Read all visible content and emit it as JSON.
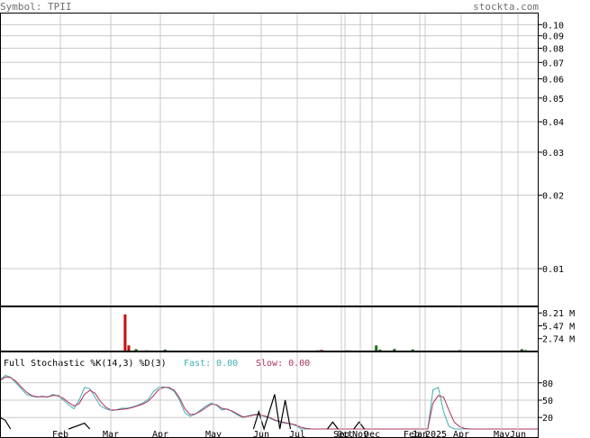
{
  "header": {
    "symbol_text": "Symbol: TPII",
    "site": "stockta.com"
  },
  "colors": {
    "grid": "#c8c8c8",
    "frame": "#000000",
    "volume_up": "#207020",
    "volume_down": "#c81010",
    "fast_line": "#40b0b0",
    "slow_line": "#b03060",
    "k_black": "#000000",
    "header_text": "#707070"
  },
  "chart_data": [
    {
      "type": "line",
      "panel": "price",
      "scale": "log",
      "ylim": [
        0.007,
        0.112
      ],
      "y_ticks": [
        "0.10",
        "0.09",
        "0.08",
        "0.07",
        "0.06",
        "0.05",
        "0.04",
        "0.03",
        "0.02",
        "0.01"
      ],
      "y_tick_values": [
        0.1,
        0.09,
        0.08,
        0.07,
        0.06,
        0.05,
        0.04,
        0.03,
        0.02,
        0.01
      ],
      "grid": true,
      "series": []
    },
    {
      "type": "bar",
      "panel": "volume",
      "ylim": [
        0,
        9.6
      ],
      "y_ticks": [
        "8.21 M",
        "5.47 M",
        "2.74 M"
      ],
      "y_tick_values": [
        8.21,
        5.47,
        2.74
      ],
      "bars": [
        {
          "i": 9,
          "v": 0.15,
          "c": "up"
        },
        {
          "i": 19,
          "v": 0.12,
          "c": "up"
        },
        {
          "i": 24,
          "v": 0.18,
          "c": "up"
        },
        {
          "i": 29,
          "v": 0.1,
          "c": "up"
        },
        {
          "i": 34,
          "v": 7.9,
          "c": "down"
        },
        {
          "i": 35,
          "v": 1.3,
          "c": "down"
        },
        {
          "i": 37,
          "v": 0.5,
          "c": "up"
        },
        {
          "i": 40,
          "v": 0.25,
          "c": "down"
        },
        {
          "i": 45,
          "v": 0.4,
          "c": "up"
        },
        {
          "i": 50,
          "v": 0.12,
          "c": "up"
        },
        {
          "i": 66,
          "v": 0.15,
          "c": "down"
        },
        {
          "i": 87,
          "v": 0.25,
          "c": "up"
        },
        {
          "i": 88,
          "v": 0.35,
          "c": "down"
        },
        {
          "i": 95,
          "v": 0.25,
          "c": "up"
        },
        {
          "i": 96,
          "v": 0.2,
          "c": "up"
        },
        {
          "i": 103,
          "v": 1.3,
          "c": "up"
        },
        {
          "i": 104,
          "v": 0.4,
          "c": "up"
        },
        {
          "i": 108,
          "v": 0.55,
          "c": "up"
        },
        {
          "i": 113,
          "v": 0.45,
          "c": "up"
        },
        {
          "i": 124,
          "v": 0.2,
          "c": "up"
        },
        {
          "i": 126,
          "v": 0.3,
          "c": "up"
        },
        {
          "i": 143,
          "v": 0.5,
          "c": "up"
        },
        {
          "i": 144,
          "v": 0.3,
          "c": "up"
        }
      ]
    },
    {
      "type": "line",
      "panel": "stochastic",
      "title": "Full Stochastic %K(14,3) %D(3)",
      "fast_label": "Fast: 0.00",
      "slow_label": "Slow: 0.00",
      "ylim": [
        0,
        100
      ],
      "y_ticks": [
        "80",
        "50",
        "20"
      ],
      "y_tick_values": [
        80,
        50,
        20
      ],
      "series": [
        {
          "name": "Fast",
          "y": [
            85,
            93,
            90,
            80,
            70,
            60,
            57,
            55,
            57,
            55,
            60,
            57,
            50,
            42,
            35,
            50,
            72,
            70,
            55,
            40,
            35,
            32,
            33,
            36,
            36,
            38,
            41,
            45,
            51,
            64,
            72,
            73,
            71,
            65,
            50,
            28,
            22,
            26,
            33,
            40,
            45,
            41,
            33,
            35,
            30,
            24,
            20,
            23,
            25,
            26,
            22,
            19,
            15,
            12,
            10,
            9,
            6,
            0,
            0,
            0,
            0,
            0,
            0,
            0,
            0,
            0,
            0,
            0,
            0,
            0,
            0,
            0,
            0,
            0,
            0,
            0,
            0,
            0,
            0,
            0,
            0,
            0,
            68,
            72,
            30,
            5,
            0,
            0,
            0,
            0,
            0,
            0,
            0,
            0,
            0,
            0,
            0,
            0,
            0,
            0,
            0,
            0,
            0
          ]
        },
        {
          "name": "Slow",
          "y": [
            84,
            90,
            89,
            83,
            73,
            64,
            58,
            56,
            56,
            56,
            58,
            58,
            53,
            46,
            40,
            44,
            60,
            67,
            62,
            48,
            38,
            33,
            33,
            34,
            35,
            37,
            40,
            43,
            48,
            57,
            68,
            72,
            72,
            67,
            54,
            35,
            25,
            26,
            31,
            37,
            43,
            42,
            36,
            34,
            31,
            26,
            21,
            22,
            24,
            25,
            23,
            20,
            16,
            13,
            11,
            9,
            7,
            3,
            1,
            0,
            0,
            0,
            0,
            0,
            0,
            0,
            0,
            0,
            0,
            0,
            0,
            0,
            0,
            0,
            0,
            0,
            0,
            0,
            0,
            0,
            0,
            0,
            45,
            58,
            55,
            33,
            12,
            4,
            1,
            0,
            0,
            0,
            0,
            0,
            0,
            0,
            0,
            0,
            0,
            0,
            0,
            0,
            0
          ]
        },
        {
          "name": "%K",
          "segments": [
            [
              [
                0,
                20
              ],
              [
                1,
                15
              ],
              [
                2,
                0
              ]
            ],
            [
              [
                13,
                0
              ],
              [
                16,
                10
              ],
              [
                17,
                0
              ]
            ],
            [
              [
                48,
                0
              ],
              [
                49,
                30
              ],
              [
                50,
                0
              ],
              [
                51,
                30
              ],
              [
                52,
                60
              ],
              [
                53,
                0
              ],
              [
                54,
                50
              ],
              [
                55,
                0
              ]
            ],
            [
              [
                62,
                0
              ],
              [
                63,
                12
              ],
              [
                64,
                0
              ]
            ],
            [
              [
                67,
                0
              ],
              [
                68,
                12
              ],
              [
                69,
                0
              ]
            ]
          ]
        }
      ]
    }
  ],
  "x_axis": {
    "labels": [
      "Feb",
      "Mar",
      "Apr",
      "May",
      "Jun",
      "Jul",
      "Sep",
      "Oct",
      "Nov",
      "Dec",
      "Jan",
      "Feb 2025",
      "Apr",
      "May",
      "Jun"
    ]
  }
}
